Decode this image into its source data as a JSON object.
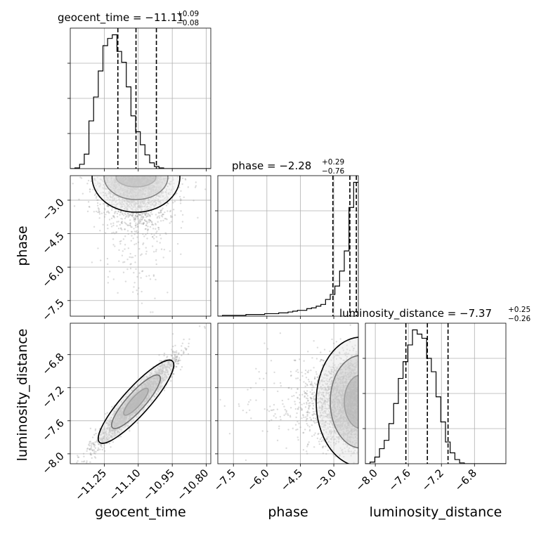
{
  "chart_data": {
    "type": "corner",
    "parameters": [
      "geocent_time",
      "phase",
      "luminosity_distance"
    ],
    "titles": [
      {
        "param": "geocent_time",
        "label": "geocent_time = −11.11",
        "plus": "+0.09",
        "minus": "−0.08",
        "median": -11.11,
        "lo": -11.19,
        "hi": -11.02
      },
      {
        "param": "phase",
        "label": "phase = −2.28",
        "plus": "+0.29",
        "minus": "−0.76",
        "median": -2.28,
        "lo": -3.04,
        "hi": -1.99
      },
      {
        "param": "luminosity_distance",
        "label": "luminosity_distance = −7.37",
        "plus": "+0.25",
        "minus": "−0.26",
        "median": -7.37,
        "lo": -7.63,
        "hi": -7.12
      }
    ],
    "axes": {
      "geocent_time": {
        "range": [
          -11.4,
          -10.78
        ],
        "ticks": [
          -11.25,
          -11.1,
          -10.95,
          -10.8
        ],
        "tick_labels": [
          "−11.25",
          "−11.10",
          "−10.95",
          "−10.80"
        ],
        "xlabel": "geocent_time"
      },
      "phase": {
        "range": [
          -8.2,
          -1.9
        ],
        "ticks": [
          -7.5,
          -6.0,
          -4.5,
          -3.0
        ],
        "tick_labels": [
          "−7.5",
          "−6.0",
          "−4.5",
          "−3.0"
        ],
        "xlabel": "phase",
        "ylabel": "phase"
      },
      "luminosity_distance": {
        "range": [
          -8.12,
          -6.42
        ],
        "ticks": [
          -8.0,
          -7.6,
          -7.2,
          -6.8
        ],
        "tick_labels": [
          "−8.0",
          "−7.6",
          "−7.2",
          "−6.8"
        ],
        "xlabel": "luminosity_distance",
        "ylabel": "luminosity_distance"
      }
    },
    "histograms": {
      "geocent_time": {
        "bin_start": -11.4,
        "bin_width": 0.0206,
        "counts": [
          0,
          1,
          6,
          20,
          66,
          99,
          135,
          170,
          180,
          185,
          162,
          147,
          113,
          73,
          51,
          33,
          19,
          8,
          3,
          1,
          0,
          0,
          0,
          0,
          0,
          0,
          0,
          0,
          0,
          0
        ]
      },
      "phase": {
        "bin_start": -8.2,
        "bin_width": 0.21,
        "counts": [
          0,
          1,
          1,
          1,
          1,
          1,
          2,
          2,
          2,
          2,
          3,
          3,
          3,
          4,
          4,
          5,
          6,
          7,
          7,
          9,
          10,
          12,
          14,
          20,
          26,
          36,
          54,
          78,
          130,
          160
        ]
      },
      "luminosity_distance": {
        "bin_start": -8.12,
        "bin_width": 0.057,
        "counts": [
          0,
          2,
          8,
          18,
          28,
          48,
          72,
          102,
          122,
          142,
          160,
          155,
          150,
          126,
          110,
          80,
          50,
          26,
          13,
          5,
          1,
          0,
          0,
          0,
          0,
          0,
          0,
          0,
          0,
          0
        ]
      }
    },
    "joint": [
      {
        "x": "geocent_time",
        "y": "phase",
        "mean": [
          -11.11,
          -2.4
        ],
        "sd": [
          0.08,
          1.1
        ],
        "rho": 0.0
      },
      {
        "x": "geocent_time",
        "y": "luminosity_distance",
        "mean": [
          -11.11,
          -7.37
        ],
        "sd": [
          0.085,
          0.26
        ],
        "rho": 0.95
      },
      {
        "x": "phase",
        "y": "luminosity_distance",
        "mean": [
          -2.28,
          -7.37
        ],
        "sd": [
          0.9,
          0.26
        ],
        "rho": 0.0
      }
    ]
  }
}
